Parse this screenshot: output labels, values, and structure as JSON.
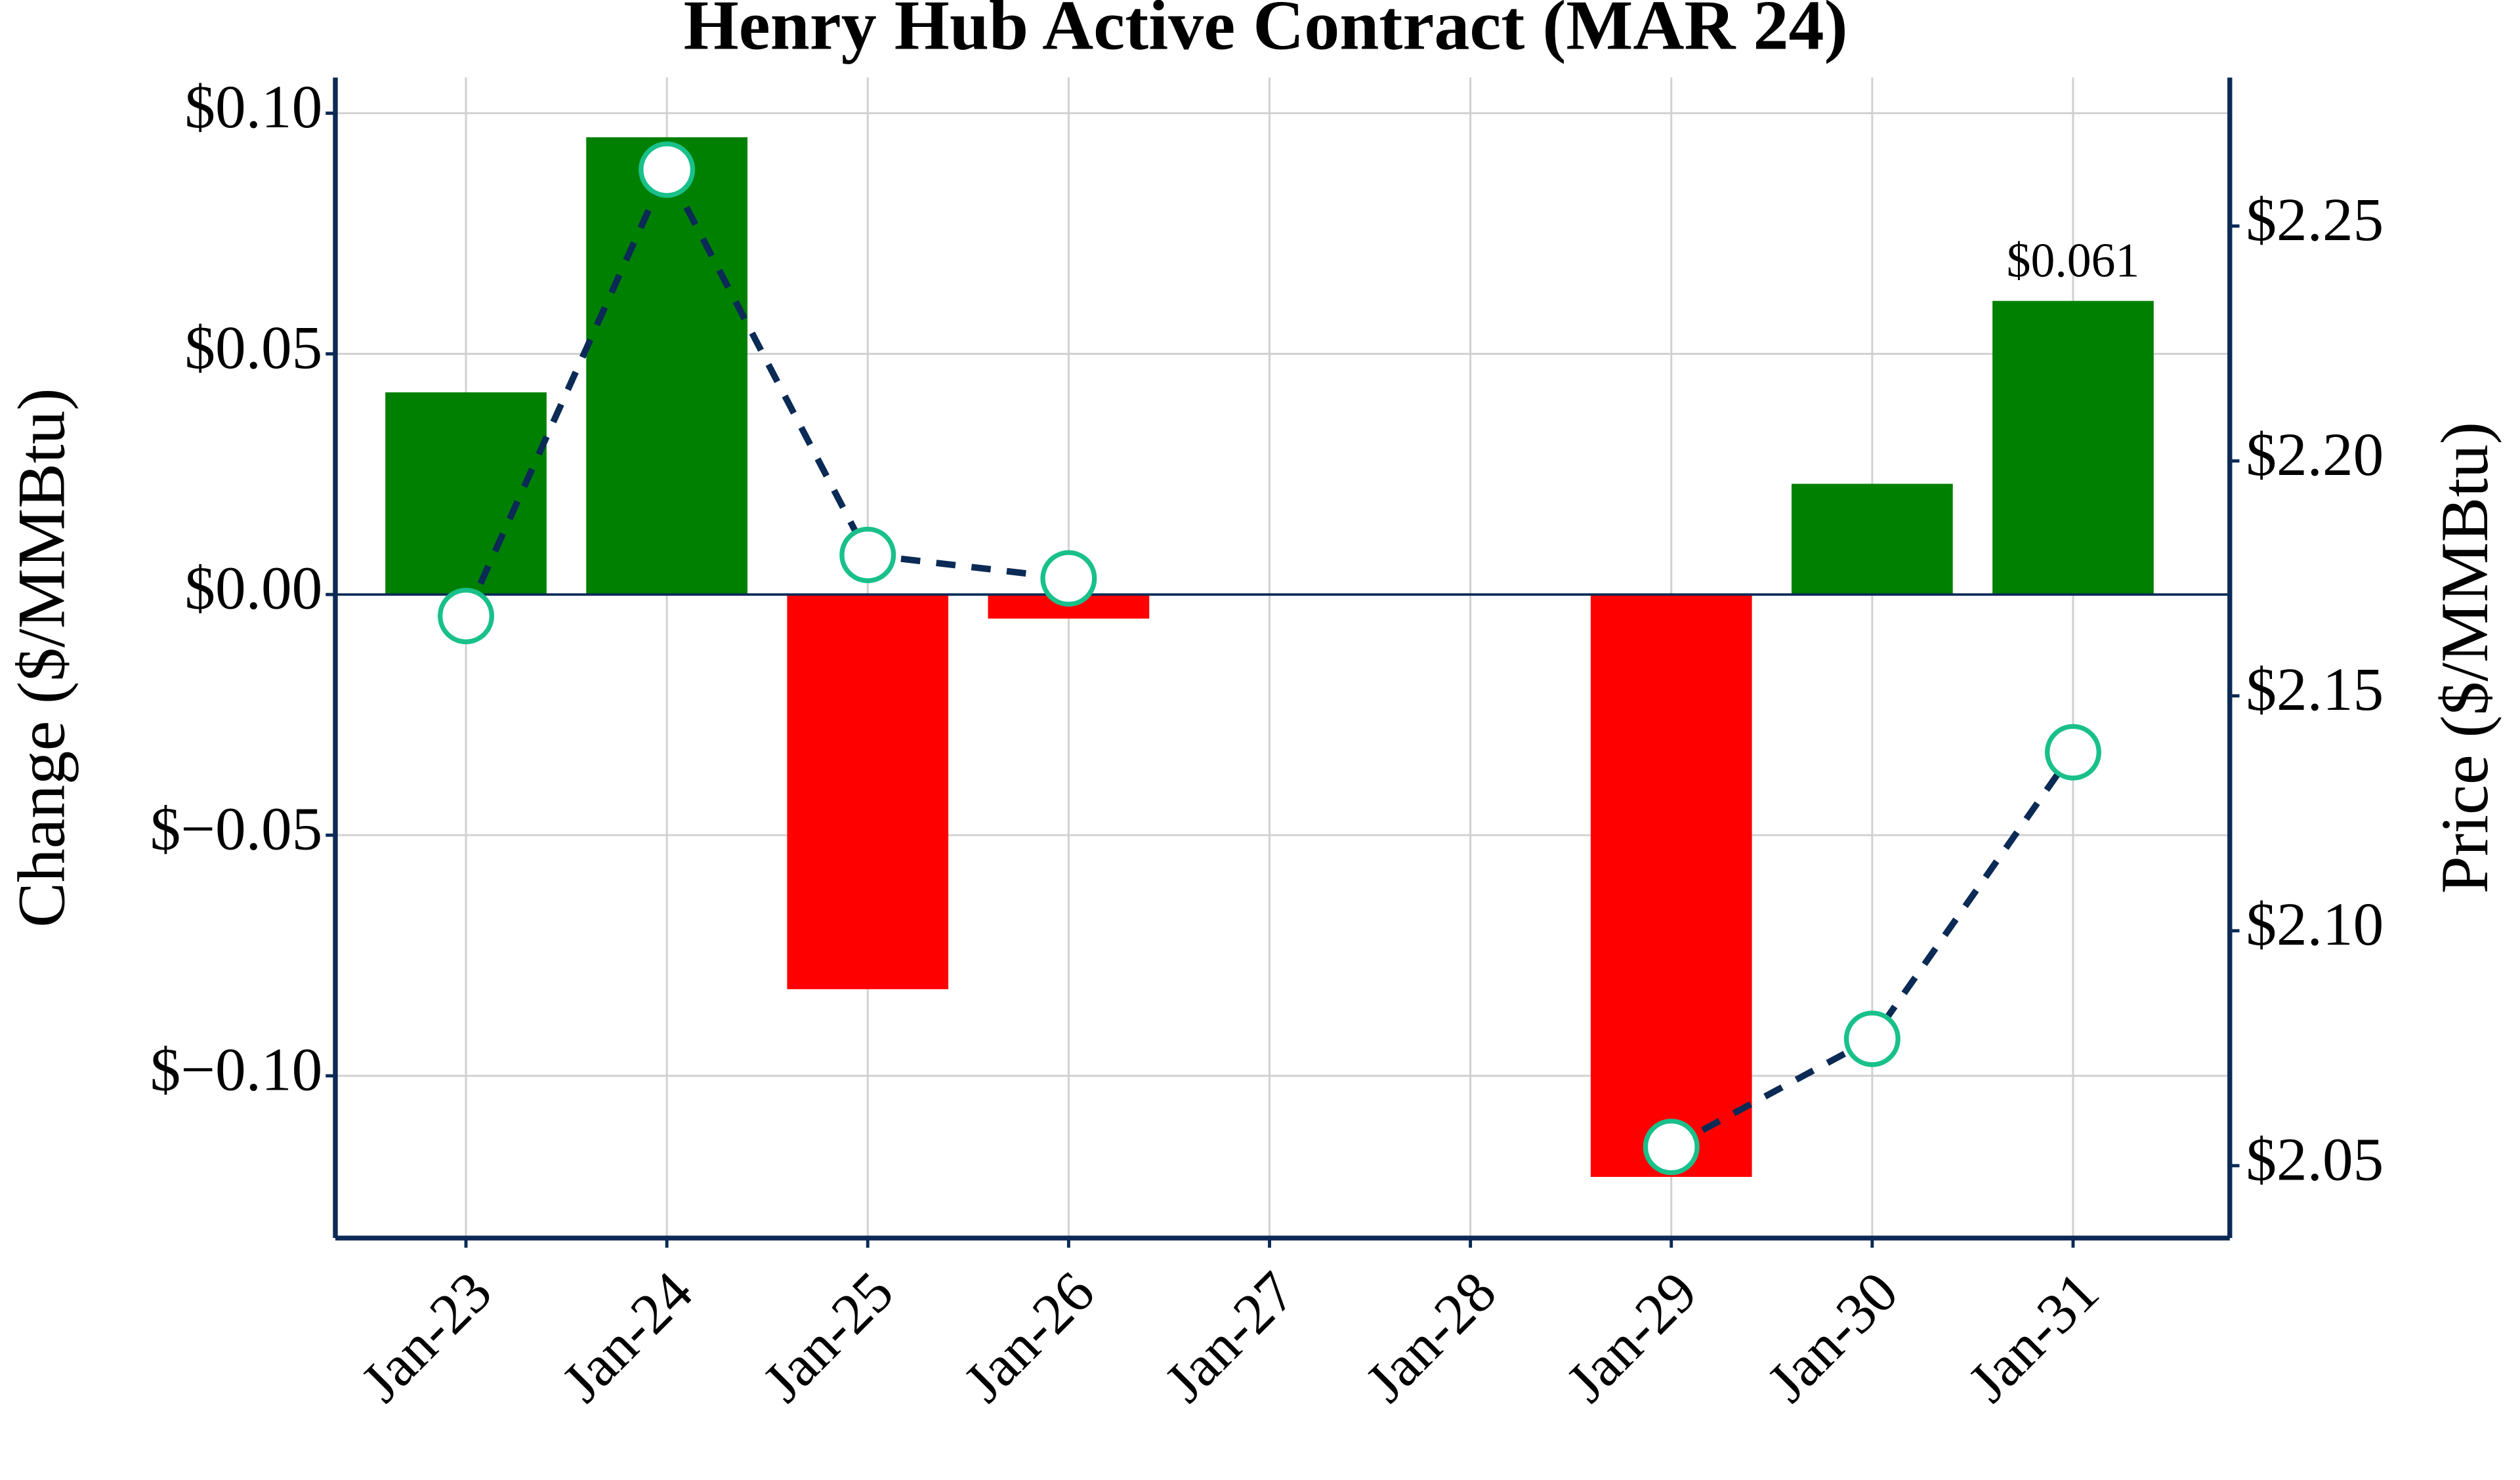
{
  "chart_data": {
    "type": "bar",
    "title": "Henry Hub Active Contract (MAR 24)",
    "y_label": "Change ($/MMBtu)",
    "y2_label": "Price ($/MMBtu)",
    "categories": [
      "Jan-23",
      "Jan-24",
      "Jan-25",
      "Jan-26",
      "Jan-27",
      "Jan-28",
      "Jan-29",
      "Jan-30",
      "Jan-31"
    ],
    "series": [
      {
        "type": "bar",
        "positive_color": "#008000",
        "negative_color": "#ff0000",
        "values": [
          0.042,
          0.095,
          -0.082,
          -0.005,
          null,
          null,
          -0.121,
          0.023,
          0.061
        ],
        "value_labels": [
          null,
          null,
          null,
          null,
          null,
          null,
          null,
          null,
          "$0.061"
        ]
      },
      {
        "type": "line",
        "axis": "y2",
        "color": "#0b2a55",
        "marker_color": "#19c08a",
        "values": [
          2.167,
          2.262,
          2.18,
          2.175,
          null,
          null,
          2.054,
          2.077,
          2.138
        ]
      }
    ],
    "ylim": [
      -0.1337,
      0.1074
    ],
    "yticks": [
      {
        "value": 0.1,
        "label": "$0.10"
      },
      {
        "value": 0.05,
        "label": "$0.05"
      },
      {
        "value": 0,
        "label": "$0.00"
      },
      {
        "value": -0.05,
        "label": "$−0.05"
      },
      {
        "value": -0.1,
        "label": "$−0.10"
      }
    ],
    "y2lim": [
      2.0346,
      2.2816
    ],
    "y2ticks": [
      {
        "value": 2.25,
        "label": "$2.25"
      },
      {
        "value": 2.2,
        "label": "$2.20"
      },
      {
        "value": 2.15,
        "label": "$2.15"
      },
      {
        "value": 2.1,
        "label": "$2.10"
      },
      {
        "value": 2.05,
        "label": "$2.05"
      }
    ],
    "grid": true,
    "axis_color": "#0b2a55"
  }
}
